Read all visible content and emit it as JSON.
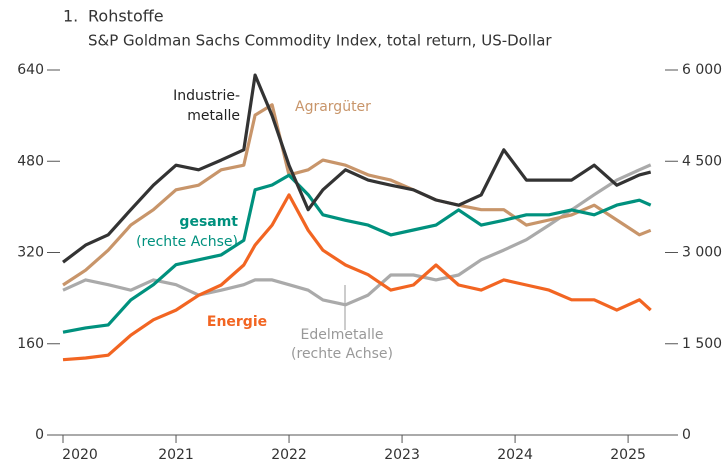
{
  "chart_data": {
    "type": "line",
    "number": "1.",
    "title": "Rohstoffe",
    "subtitle": "S&P Goldman Sachs Commodity Index, total return, US-Dollar",
    "x": [
      2020.0,
      2020.2,
      2020.4,
      2020.6,
      2020.8,
      2021.0,
      2021.2,
      2021.4,
      2021.6,
      2021.7,
      2021.85,
      2022.0,
      2022.17,
      2022.3,
      2022.5,
      2022.7,
      2022.9,
      2023.1,
      2023.3,
      2023.5,
      2023.7,
      2023.9,
      2024.1,
      2024.3,
      2024.5,
      2024.7,
      2024.9,
      2025.1,
      2025.2
    ],
    "xlim": [
      2019.885,
      2025.3
    ],
    "xticks": [
      2020,
      2021,
      2022,
      2023,
      2024,
      2025
    ],
    "ylim": [
      0,
      640
    ],
    "yticks": [
      0,
      160,
      320,
      480,
      640
    ],
    "y2lim": [
      0,
      6000
    ],
    "y2ticks": [
      {
        "value": 0,
        "label": "0"
      },
      {
        "value": 1500,
        "label": "1 500"
      },
      {
        "value": 3000,
        "label": "3 000"
      },
      {
        "value": 4500,
        "label": "4 500"
      },
      {
        "value": 6000,
        "label": "6 000"
      }
    ],
    "series": [
      {
        "name": "Edelmetalle",
        "color": "#aaaaaa",
        "axis": "y2",
        "values": [
          2380,
          2550,
          2470,
          2380,
          2550,
          2470,
          2300,
          2380,
          2470,
          2550,
          2550,
          2470,
          2380,
          2220,
          2140,
          2300,
          2630,
          2630,
          2550,
          2630,
          2880,
          3040,
          3210,
          3450,
          3700,
          3950,
          4190,
          4360,
          4440
        ]
      },
      {
        "name": "Agrargüter",
        "color": "#c8956a",
        "axis": "y",
        "values": [
          263,
          289,
          324,
          368,
          395,
          430,
          438,
          465,
          473,
          561,
          579,
          456,
          465,
          482,
          473,
          456,
          447,
          430,
          412,
          403,
          395,
          395,
          368,
          377,
          386,
          403,
          377,
          351,
          359
        ]
      },
      {
        "name": "Energie",
        "color": "#f26522",
        "axis": "y",
        "values": [
          132,
          135,
          140,
          175,
          202,
          219,
          245,
          263,
          298,
          333,
          368,
          421,
          359,
          324,
          298,
          281,
          254,
          263,
          298,
          263,
          254,
          272,
          263,
          254,
          237,
          237,
          219,
          237,
          219
        ]
      },
      {
        "name": "gesamt",
        "color": "#00917e",
        "axis": "y2",
        "values": [
          1690,
          1760,
          1810,
          2220,
          2470,
          2800,
          2880,
          2960,
          3200,
          4030,
          4110,
          4270,
          3950,
          3620,
          3530,
          3450,
          3290,
          3370,
          3450,
          3700,
          3450,
          3530,
          3620,
          3620,
          3700,
          3620,
          3780,
          3860,
          3780
        ]
      },
      {
        "name": "Industriemetalle",
        "color": "#333333",
        "axis": "y",
        "values": [
          303,
          333,
          351,
          395,
          438,
          473,
          465,
          482,
          500,
          631,
          560,
          473,
          395,
          430,
          465,
          447,
          438,
          430,
          412,
          403,
          421,
          500,
          447,
          447,
          447,
          473,
          438,
          456,
          461
        ]
      }
    ],
    "annotations": [
      {
        "text": "Industrie-",
        "color": "#222222",
        "bold": false
      },
      {
        "text": "metalle",
        "color": "#222222",
        "bold": false
      },
      {
        "text": "Agrargüter",
        "color": "#c8956a",
        "bold": false
      },
      {
        "text": "gesamt",
        "color": "#00917e",
        "bold": true
      },
      {
        "text": "(rechte Achse)",
        "color": "#00917e",
        "bold": false
      },
      {
        "text": "Energie",
        "color": "#f26522",
        "bold": true
      },
      {
        "text": "Edelmetalle",
        "color": "#999999",
        "bold": false
      },
      {
        "text": "(rechte Achse)",
        "color": "#999999",
        "bold": false
      }
    ]
  }
}
